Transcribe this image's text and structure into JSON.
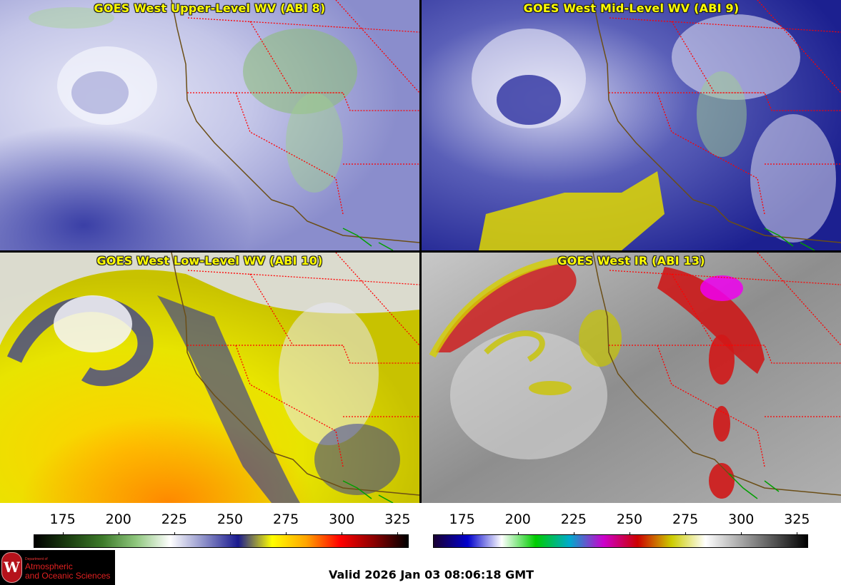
{
  "panels": [
    {
      "title": "GOES West Upper-Level WV (ABI 8)",
      "colormap": "wv",
      "base": "#c6c9ea",
      "channel_icon": "water-vapor-image"
    },
    {
      "title": "GOES West Mid-Level WV (ABI 9)",
      "colormap": "wv",
      "base": "#2a2f9c",
      "channel_icon": "water-vapor-image"
    },
    {
      "title": "GOES West Low-Level WV (ABI 10)",
      "colormap": "wv",
      "base": "#d9d400",
      "channel_icon": "water-vapor-image"
    },
    {
      "title": "GOES West IR (ABI 13)",
      "colormap": "ir",
      "base": "#9a9a9a",
      "channel_icon": "infrared-image"
    }
  ],
  "colorbars": {
    "left": {
      "ticks": [
        "175",
        "200",
        "225",
        "250",
        "275",
        "300",
        "325"
      ],
      "range": [
        162,
        330
      ],
      "stops": [
        "#000000",
        "#1b3d10",
        "#3d7a2a",
        "#8fc77e",
        "#ffffff",
        "#8d90c9",
        "#1a1a8f",
        "#ffff00",
        "#ffa500",
        "#ff0000",
        "#8b0000",
        "#000000"
      ]
    },
    "right": {
      "ticks": [
        "175",
        "200",
        "225",
        "250",
        "275",
        "300",
        "325"
      ],
      "range": [
        162,
        330
      ],
      "stops": [
        "#1a0033",
        "#0000cc",
        "#ffffff",
        "#00cc00",
        "#00aacc",
        "#cc00cc",
        "#cc0000",
        "#cccc00",
        "#ffffff",
        "#aaaaaa",
        "#555555",
        "#000000"
      ]
    }
  },
  "logo": {
    "dept": "Department of",
    "line1": "Atmospheric",
    "line2": "and Oceanic Sciences",
    "seal_letter": "W"
  },
  "valid_time": "Valid 2026 Jan 03 08:06:18 GMT",
  "colors": {
    "title_text": "#ffff00",
    "state_border": "#ff0000",
    "coastline": "#6b4e16",
    "country_border": "#00a000"
  }
}
